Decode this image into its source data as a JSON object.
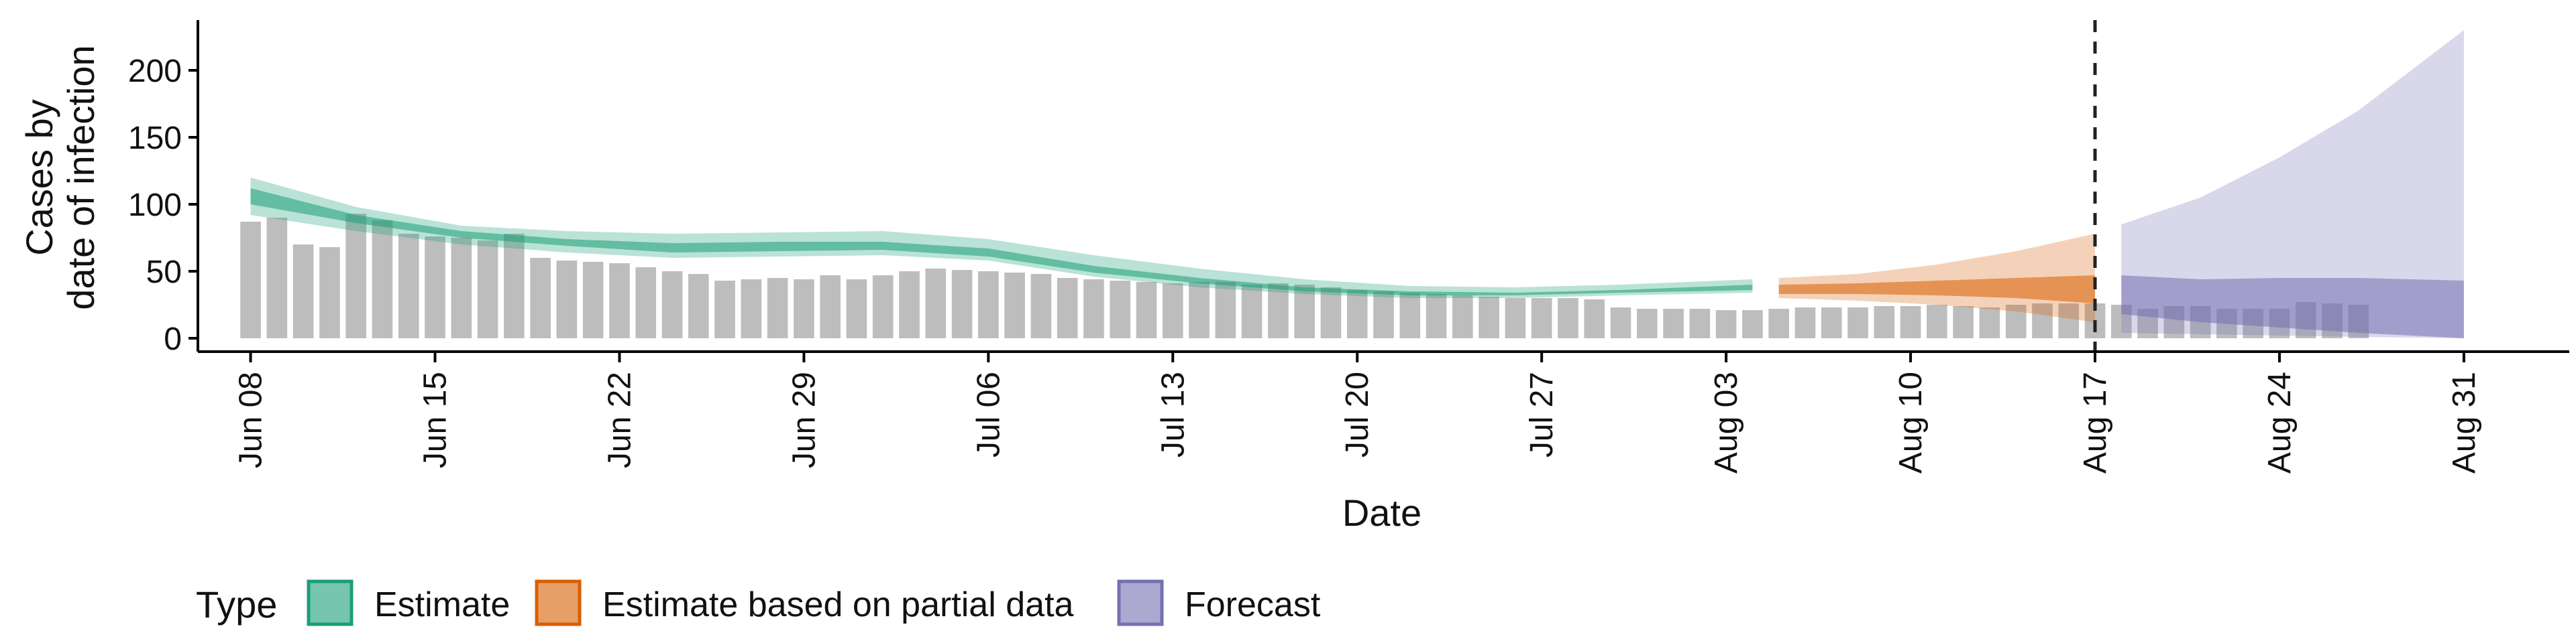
{
  "chart_data": {
    "type": "bar",
    "title": "",
    "xlabel": "Date",
    "ylabel_lines": [
      "Cases by",
      "date of infection"
    ],
    "ylim": [
      0,
      240
    ],
    "yticks": [
      0,
      50,
      100,
      150,
      200
    ],
    "xrange": [
      "2020-06-06",
      "2020-09-04"
    ],
    "xticks": [
      {
        "date": "2020-06-08",
        "label": "Jun 08"
      },
      {
        "date": "2020-06-15",
        "label": "Jun 15"
      },
      {
        "date": "2020-06-22",
        "label": "Jun 22"
      },
      {
        "date": "2020-06-29",
        "label": "Jun 29"
      },
      {
        "date": "2020-07-06",
        "label": "Jul 06"
      },
      {
        "date": "2020-07-13",
        "label": "Jul 13"
      },
      {
        "date": "2020-07-20",
        "label": "Jul 20"
      },
      {
        "date": "2020-07-27",
        "label": "Jul 27"
      },
      {
        "date": "2020-08-03",
        "label": "Aug 03"
      },
      {
        "date": "2020-08-10",
        "label": "Aug 10"
      },
      {
        "date": "2020-08-17",
        "label": "Aug 17"
      },
      {
        "date": "2020-08-24",
        "label": "Aug 24"
      },
      {
        "date": "2020-08-31",
        "label": "Aug 31"
      }
    ],
    "reported_cases": {
      "start": "2020-06-08",
      "values": [
        87,
        90,
        70,
        68,
        93,
        88,
        78,
        76,
        75,
        73,
        78,
        60,
        58,
        57,
        56,
        53,
        50,
        48,
        43,
        44,
        45,
        44,
        47,
        44,
        47,
        50,
        52,
        51,
        50,
        49,
        48,
        45,
        44,
        43,
        42,
        41,
        42,
        42,
        40,
        41,
        40,
        38,
        36,
        35,
        34,
        33,
        32,
        31,
        30,
        30,
        30,
        29,
        23,
        22,
        22,
        22,
        21,
        21,
        22,
        23,
        23,
        23,
        24,
        24,
        25,
        24,
        23,
        25,
        26,
        26,
        26,
        25,
        22,
        24,
        24,
        22,
        22,
        22,
        27,
        26,
        25
      ]
    },
    "series": [
      {
        "name": "Estimate",
        "color": "#1b9e77",
        "start": "2020-06-08",
        "end": "2020-08-04",
        "median_mid": [
          106,
          103,
          100,
          96,
          92,
          88,
          84,
          81,
          78,
          76,
          74,
          72,
          70,
          68,
          67,
          66,
          65,
          65,
          64,
          64,
          65,
          65,
          65,
          64,
          64,
          64,
          64,
          65,
          65,
          65,
          65,
          65,
          64,
          63,
          62,
          61,
          60,
          59,
          58,
          57,
          55,
          53,
          51,
          49,
          48,
          47,
          46,
          45,
          44,
          43,
          42,
          41,
          40,
          39,
          38,
          37,
          36,
          35,
          34,
          34,
          33,
          33,
          33,
          32,
          32,
          32,
          32,
          32,
          32,
          32,
          32,
          32,
          33,
          33,
          33,
          33,
          34,
          34,
          34,
          34,
          34,
          35,
          35,
          35,
          35,
          35,
          36,
          36,
          36,
          36,
          36,
          36,
          37,
          37,
          37,
          37,
          37,
          37,
          38,
          38,
          38,
          38,
          38,
          38,
          38
        ],
        "dates_note": "",
        "median_lo": [
          98,
          95,
          92,
          88,
          84,
          81,
          78,
          75,
          73,
          71,
          69,
          67,
          65,
          64,
          63,
          62,
          61,
          61,
          60,
          60,
          61,
          61,
          61,
          61,
          60,
          60,
          60,
          61,
          61,
          61,
          61,
          61,
          60,
          59,
          58,
          57,
          56,
          55,
          54,
          53,
          51,
          49,
          47,
          46,
          45,
          44,
          43,
          42,
          41,
          40,
          39,
          38,
          37,
          36,
          35,
          34,
          33,
          33,
          32,
          31,
          31,
          31,
          30,
          30,
          30,
          30,
          30,
          30,
          30,
          30,
          30,
          30,
          30,
          31,
          31,
          31,
          31,
          31,
          32,
          32,
          32,
          32,
          32,
          33,
          33,
          33,
          33,
          33,
          33,
          34,
          34,
          34,
          34,
          34,
          34,
          34,
          34,
          34,
          35,
          35,
          35,
          35,
          35,
          35,
          35
        ],
        "median_hi": [
          114,
          111,
          107,
          103,
          99,
          95,
          91,
          87,
          84,
          81,
          79,
          77,
          75,
          73,
          72,
          71,
          70,
          70,
          69,
          69,
          69,
          70,
          70,
          69,
          68,
          68,
          68,
          69,
          69,
          69,
          69,
          69,
          68,
          67,
          66,
          65,
          64,
          63,
          62,
          61,
          59,
          57,
          55,
          53,
          51,
          50,
          49,
          48,
          47,
          46,
          45,
          44,
          43,
          42,
          41,
          40,
          39,
          38,
          37,
          36,
          35,
          35,
          35,
          35,
          34,
          34,
          34,
          34,
          34,
          34,
          34,
          34,
          35,
          35,
          35,
          35,
          36,
          36,
          36,
          36,
          37,
          37,
          37,
          37,
          38,
          38,
          38,
          38,
          39,
          39,
          39,
          39,
          39,
          40,
          40,
          40,
          40,
          40,
          40,
          40,
          41,
          41,
          41,
          41,
          41
        ]
      },
      {
        "name": "Estimate based on partial data",
        "color": "#d95f02",
        "start": "2020-08-05",
        "end": "2020-08-17"
      },
      {
        "name": "Forecast",
        "color": "#7570b3",
        "start": "2020-08-18",
        "end": "2020-08-31"
      }
    ],
    "estimate": {
      "dates": [
        "2020-06-08",
        "2020-06-12",
        "2020-06-16",
        "2020-06-20",
        "2020-06-24",
        "2020-06-28",
        "2020-07-02",
        "2020-07-06",
        "2020-07-10",
        "2020-07-14",
        "2020-07-18",
        "2020-07-22",
        "2020-07-26",
        "2020-07-30",
        "2020-08-04"
      ],
      "outer_lo": [
        92,
        80,
        70,
        64,
        60,
        61,
        62,
        58,
        46,
        38,
        33,
        30,
        30,
        32,
        34
      ],
      "outer_hi": [
        120,
        98,
        84,
        80,
        78,
        79,
        80,
        74,
        62,
        52,
        44,
        39,
        38,
        40,
        44
      ],
      "inner_lo": [
        100,
        86,
        75,
        69,
        64,
        65,
        66,
        61,
        49,
        41,
        35,
        32,
        32,
        34,
        36
      ],
      "inner_hi": [
        112,
        92,
        80,
        74,
        71,
        72,
        72,
        67,
        54,
        45,
        38,
        35,
        34,
        36,
        40
      ]
    },
    "partial": {
      "dates": [
        "2020-08-05",
        "2020-08-08",
        "2020-08-11",
        "2020-08-14",
        "2020-08-17"
      ],
      "outer_lo": [
        30,
        28,
        25,
        20,
        12
      ],
      "outer_hi": [
        45,
        48,
        55,
        65,
        78
      ],
      "inner_lo": [
        33,
        33,
        32,
        30,
        26
      ],
      "inner_hi": [
        40,
        41,
        43,
        45,
        47
      ]
    },
    "forecast": {
      "dates": [
        "2020-08-18",
        "2020-08-21",
        "2020-08-24",
        "2020-08-27",
        "2020-08-31"
      ],
      "outer_lo": [
        4,
        3,
        2,
        1,
        0
      ],
      "outer_hi": [
        85,
        105,
        135,
        170,
        230
      ],
      "inner_lo": [
        18,
        12,
        8,
        4,
        0
      ],
      "inner_hi": [
        47,
        44,
        45,
        45,
        43
      ]
    },
    "vline_date": "2020-08-17",
    "legend": {
      "title": "Type",
      "items": [
        {
          "label": "Estimate",
          "color": "#1b9e77"
        },
        {
          "label": "Estimate based on partial data",
          "color": "#d95f02"
        },
        {
          "label": "Forecast",
          "color": "#7570b3"
        }
      ]
    }
  }
}
